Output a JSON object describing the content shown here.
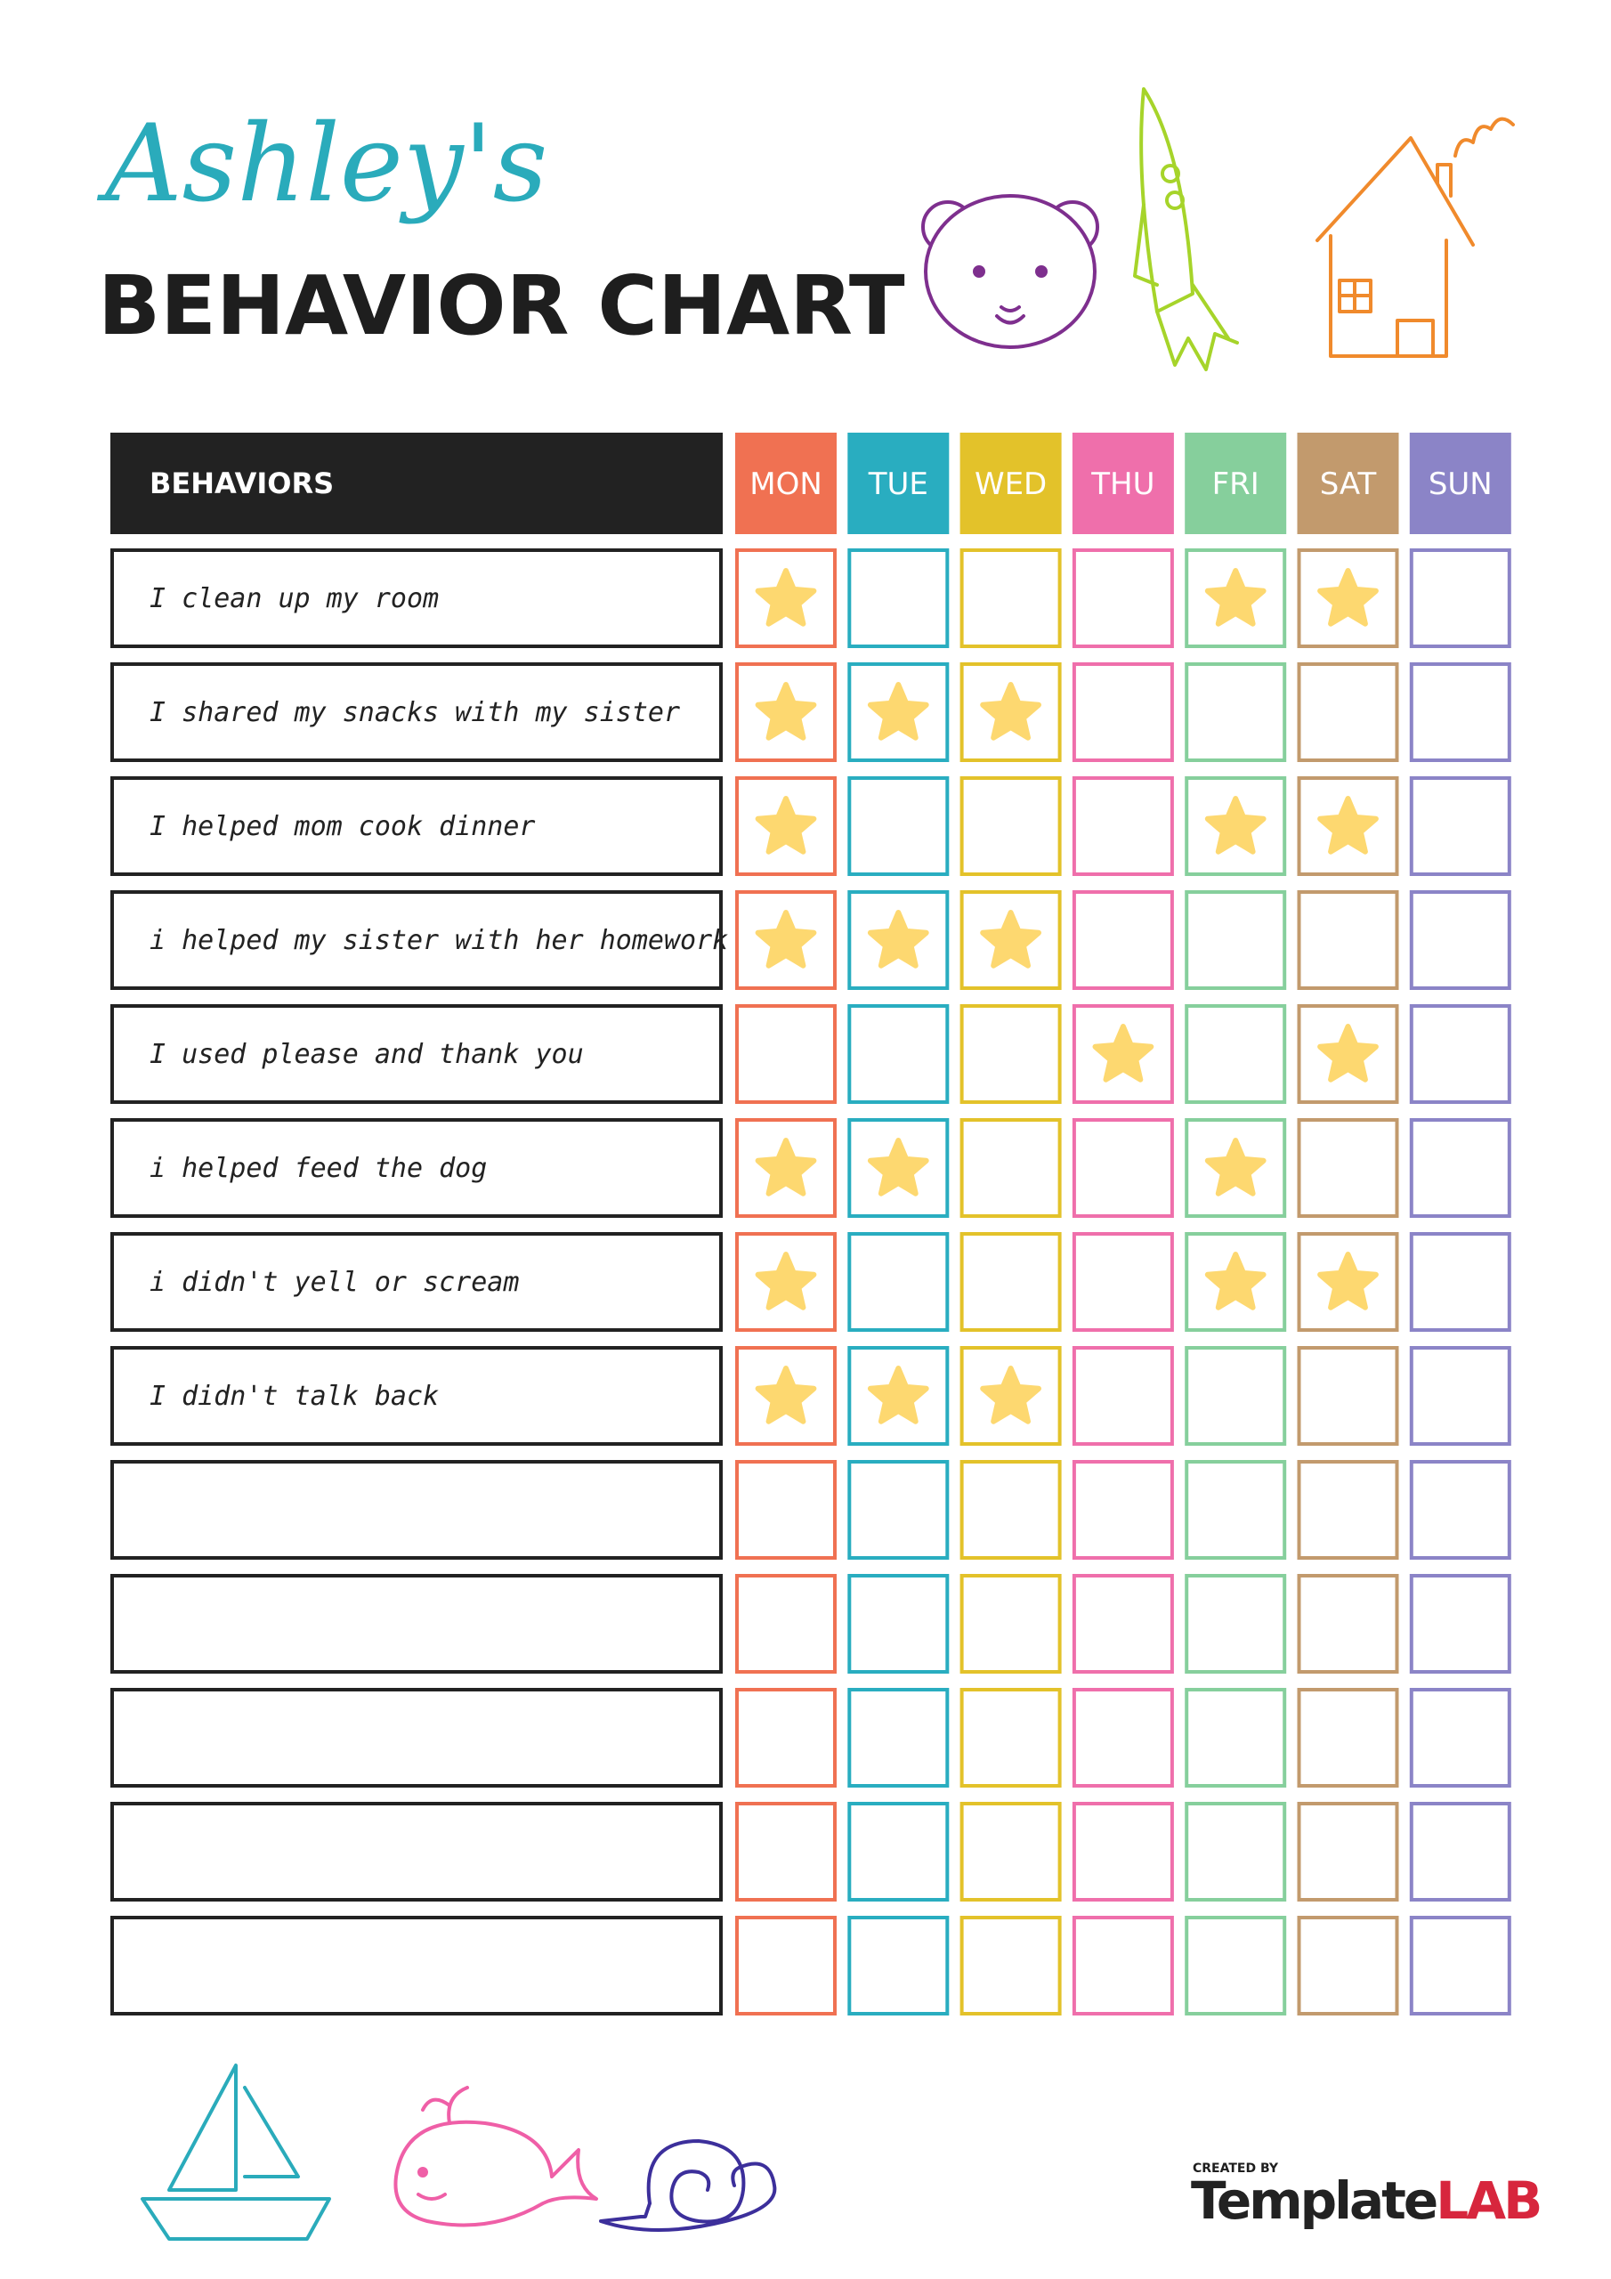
{
  "header": {
    "name": "Ashley's",
    "title": "BEHAVIOR CHART"
  },
  "table": {
    "behaviors_heading": "BEHAVIORS",
    "days": [
      {
        "label": "MON",
        "color": "#f07152"
      },
      {
        "label": "TUE",
        "color": "#29adc0"
      },
      {
        "label": "WED",
        "color": "#e3c22a"
      },
      {
        "label": "THU",
        "color": "#ef6fab"
      },
      {
        "label": "FRI",
        "color": "#86cf9c"
      },
      {
        "label": "SAT",
        "color": "#c29a6d"
      },
      {
        "label": "SUN",
        "color": "#8b84c7"
      }
    ],
    "star_color": "#fdd870",
    "rows": [
      {
        "behavior": "I clean up my room",
        "stars": [
          true,
          false,
          false,
          false,
          true,
          true,
          false
        ]
      },
      {
        "behavior": "I shared my snacks with my sister",
        "stars": [
          true,
          true,
          true,
          false,
          false,
          false,
          false
        ]
      },
      {
        "behavior": "I helped mom cook dinner",
        "stars": [
          true,
          false,
          false,
          false,
          true,
          true,
          false
        ]
      },
      {
        "behavior": "i helped my sister with her homework",
        "stars": [
          true,
          true,
          true,
          false,
          false,
          false,
          false
        ]
      },
      {
        "behavior": "I used please and thank you",
        "stars": [
          false,
          false,
          false,
          true,
          false,
          true,
          false
        ]
      },
      {
        "behavior": "i helped feed the dog",
        "stars": [
          true,
          true,
          false,
          false,
          true,
          false,
          false
        ]
      },
      {
        "behavior": "i didn't yell or scream",
        "stars": [
          true,
          false,
          false,
          false,
          true,
          true,
          false
        ]
      },
      {
        "behavior": "I didn't talk back",
        "stars": [
          true,
          true,
          true,
          false,
          false,
          false,
          false
        ]
      },
      {
        "stars": [
          false,
          false,
          false,
          false,
          false,
          false,
          false
        ]
      },
      {
        "stars": [
          false,
          false,
          false,
          false,
          false,
          false,
          false
        ]
      },
      {
        "stars": [
          false,
          false,
          false,
          false,
          false,
          false,
          false
        ]
      },
      {
        "stars": [
          false,
          false,
          false,
          false,
          false,
          false,
          false
        ]
      },
      {
        "stars": [
          false,
          false,
          false,
          false,
          false,
          false,
          false
        ]
      }
    ]
  },
  "logo": {
    "caption": "CREATED BY",
    "name": "Template",
    "accent": "LAB"
  }
}
